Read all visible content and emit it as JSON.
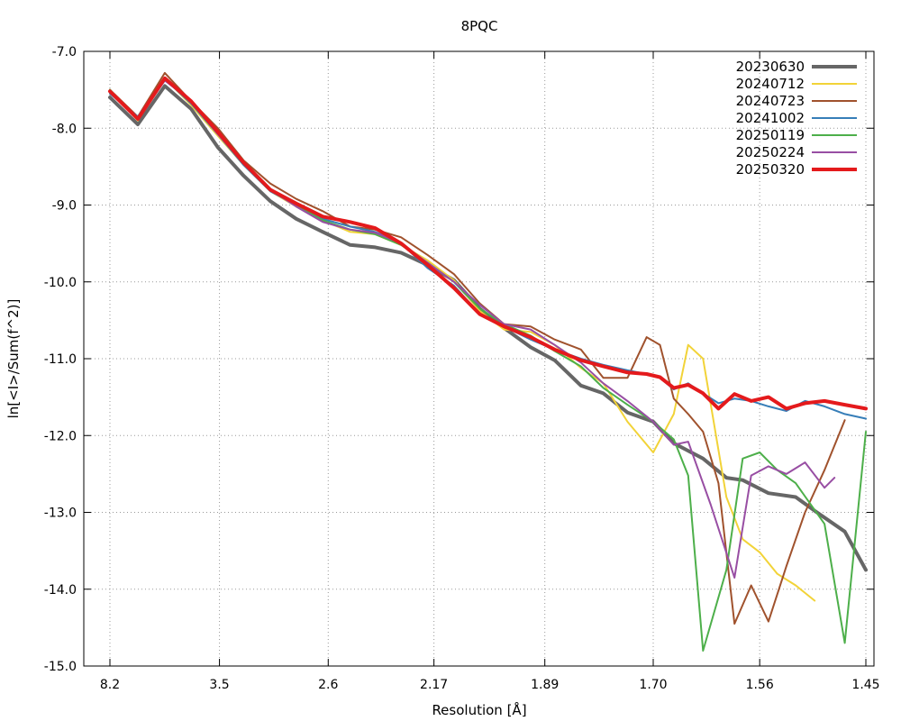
{
  "chart_data": {
    "type": "line",
    "title": "8PQC",
    "xlabel": "Resolution [Å]",
    "ylabel": "ln[<I>/Sum(f^2)]",
    "xticks": [
      "8.2",
      "3.5",
      "2.6",
      "2.17",
      "1.89",
      "1.70",
      "1.56",
      "1.45"
    ],
    "yticks": [
      "-7.0",
      "-8.0",
      "-9.0",
      "-10.0",
      "-11.0",
      "-12.0",
      "-13.0",
      "-14.0",
      "-15.0"
    ],
    "x_axis_units": "resolution in Å, ticks evenly spaced in 1/d^2",
    "xlim": [
      8.2,
      1.45
    ],
    "ylim": [
      -15.0,
      -7.0
    ],
    "grid": true,
    "legend_position": "top-right",
    "series": [
      {
        "name": "20230630",
        "color": "#666666",
        "width": 4,
        "x": [
          8.2,
          5.6,
          4.55,
          3.94,
          3.52,
          3.22,
          2.98,
          2.79,
          2.63,
          2.49,
          2.38,
          2.28,
          2.19,
          2.11,
          2.04,
          1.98,
          1.92,
          1.87,
          1.82,
          1.78,
          1.74,
          1.7,
          1.67,
          1.63,
          1.6,
          1.58,
          1.55,
          1.52,
          1.5,
          1.47,
          1.45
        ],
        "y": [
          -7.6,
          -7.95,
          -7.45,
          -7.75,
          -8.25,
          -8.62,
          -8.95,
          -9.18,
          -9.35,
          -9.52,
          -9.55,
          -9.62,
          -9.78,
          -9.98,
          -10.35,
          -10.6,
          -10.85,
          -11.02,
          -11.35,
          -11.45,
          -11.7,
          -11.82,
          -12.1,
          -12.3,
          -12.55,
          -12.58,
          -12.75,
          -12.8,
          -12.98,
          -13.25,
          -13.75
        ]
      },
      {
        "name": "20240712",
        "color": "#f2d338",
        "width": 2,
        "x": [
          8.2,
          5.6,
          4.55,
          3.94,
          3.52,
          3.22,
          2.98,
          2.79,
          2.63,
          2.49,
          2.38,
          2.28,
          2.19,
          2.11,
          2.04,
          1.98,
          1.92,
          1.87,
          1.82,
          1.78,
          1.74,
          1.7,
          1.67,
          1.65,
          1.63,
          1.6,
          1.58,
          1.56,
          1.54,
          1.52,
          1.5
        ],
        "y": [
          -7.5,
          -7.9,
          -7.35,
          -7.7,
          -8.1,
          -8.48,
          -8.82,
          -9.02,
          -9.2,
          -9.35,
          -9.38,
          -9.52,
          -9.72,
          -9.98,
          -10.38,
          -10.62,
          -10.65,
          -10.82,
          -11.12,
          -11.32,
          -11.82,
          -12.22,
          -11.72,
          -10.82,
          -11.0,
          -12.8,
          -13.35,
          -13.52,
          -13.8,
          -13.95,
          -14.15
        ]
      },
      {
        "name": "20240723",
        "color": "#a0522d",
        "width": 2,
        "x": [
          8.2,
          5.6,
          4.55,
          3.94,
          3.52,
          3.22,
          2.98,
          2.79,
          2.63,
          2.49,
          2.38,
          2.28,
          2.19,
          2.11,
          2.04,
          1.98,
          1.92,
          1.87,
          1.82,
          1.78,
          1.74,
          1.71,
          1.69,
          1.67,
          1.65,
          1.63,
          1.61,
          1.59,
          1.57,
          1.55,
          1.53,
          1.51,
          1.49,
          1.47
        ],
        "y": [
          -7.5,
          -7.85,
          -7.28,
          -7.65,
          -8.0,
          -8.42,
          -8.72,
          -8.92,
          -9.08,
          -9.28,
          -9.32,
          -9.42,
          -9.65,
          -9.9,
          -10.28,
          -10.55,
          -10.58,
          -10.75,
          -10.88,
          -11.25,
          -11.25,
          -10.72,
          -10.82,
          -11.52,
          -11.72,
          -11.95,
          -12.62,
          -14.45,
          -13.95,
          -14.42,
          -13.7,
          -13.0,
          -12.45,
          -11.8
        ]
      },
      {
        "name": "20241002",
        "color": "#377eb8",
        "width": 2,
        "x": [
          8.2,
          5.6,
          4.55,
          3.94,
          3.52,
          3.22,
          2.98,
          2.79,
          2.63,
          2.49,
          2.38,
          2.28,
          2.19,
          2.11,
          2.04,
          1.98,
          1.92,
          1.87,
          1.82,
          1.78,
          1.74,
          1.71,
          1.69,
          1.67,
          1.65,
          1.63,
          1.61,
          1.59,
          1.57,
          1.55,
          1.53,
          1.51,
          1.49,
          1.47,
          1.45
        ],
        "y": [
          -7.55,
          -7.85,
          -7.36,
          -7.68,
          -8.08,
          -8.48,
          -8.82,
          -9.0,
          -9.18,
          -9.28,
          -9.35,
          -9.5,
          -9.82,
          -10.05,
          -10.42,
          -10.58,
          -10.75,
          -10.88,
          -11.0,
          -11.08,
          -11.15,
          -11.2,
          -11.25,
          -11.4,
          -11.32,
          -11.45,
          -11.58,
          -11.52,
          -11.55,
          -11.62,
          -11.68,
          -11.55,
          -11.62,
          -11.72,
          -11.78
        ]
      },
      {
        "name": "20250119",
        "color": "#4daf4a",
        "width": 2,
        "x": [
          8.2,
          5.6,
          4.55,
          3.94,
          3.52,
          3.22,
          2.98,
          2.79,
          2.63,
          2.49,
          2.38,
          2.28,
          2.19,
          2.11,
          2.04,
          1.98,
          1.92,
          1.87,
          1.82,
          1.78,
          1.74,
          1.7,
          1.67,
          1.65,
          1.63,
          1.6,
          1.58,
          1.56,
          1.54,
          1.52,
          1.49,
          1.47,
          1.45
        ],
        "y": [
          -7.5,
          -7.88,
          -7.35,
          -7.65,
          -8.05,
          -8.45,
          -8.8,
          -9.0,
          -9.2,
          -9.32,
          -9.38,
          -9.52,
          -9.75,
          -10.0,
          -10.35,
          -10.55,
          -10.7,
          -10.9,
          -11.1,
          -11.38,
          -11.6,
          -11.82,
          -12.05,
          -12.52,
          -14.8,
          -13.75,
          -12.3,
          -12.22,
          -12.45,
          -12.62,
          -13.15,
          -14.7,
          -11.95
        ]
      },
      {
        "name": "20250224",
        "color": "#984ea3",
        "width": 2,
        "x": [
          8.2,
          5.6,
          4.55,
          3.94,
          3.52,
          3.22,
          2.98,
          2.79,
          2.63,
          2.49,
          2.38,
          2.28,
          2.19,
          2.11,
          2.04,
          1.98,
          1.92,
          1.87,
          1.82,
          1.78,
          1.74,
          1.7,
          1.67,
          1.65,
          1.62,
          1.59,
          1.57,
          1.55,
          1.53,
          1.51,
          1.49,
          1.48
        ],
        "y": [
          -7.52,
          -7.88,
          -7.38,
          -7.65,
          -8.08,
          -8.45,
          -8.8,
          -9.02,
          -9.22,
          -9.32,
          -9.36,
          -9.5,
          -9.75,
          -10.0,
          -10.3,
          -10.55,
          -10.62,
          -10.82,
          -11.05,
          -11.32,
          -11.55,
          -11.82,
          -12.12,
          -12.08,
          -12.9,
          -13.85,
          -12.52,
          -12.4,
          -12.5,
          -12.35,
          -12.68,
          -12.55
        ]
      },
      {
        "name": "20250320",
        "color": "#e41a1c",
        "width": 4,
        "x": [
          8.2,
          5.6,
          4.55,
          3.94,
          3.52,
          3.22,
          2.98,
          2.79,
          2.63,
          2.49,
          2.38,
          2.28,
          2.19,
          2.11,
          2.04,
          1.98,
          1.92,
          1.87,
          1.82,
          1.78,
          1.74,
          1.71,
          1.69,
          1.67,
          1.65,
          1.63,
          1.61,
          1.59,
          1.57,
          1.55,
          1.53,
          1.51,
          1.49,
          1.47,
          1.45
        ],
        "y": [
          -7.52,
          -7.88,
          -7.35,
          -7.65,
          -8.05,
          -8.45,
          -8.8,
          -8.98,
          -9.15,
          -9.22,
          -9.3,
          -9.5,
          -9.78,
          -10.08,
          -10.42,
          -10.58,
          -10.72,
          -10.88,
          -11.02,
          -11.1,
          -11.18,
          -11.2,
          -11.24,
          -11.38,
          -11.34,
          -11.45,
          -11.65,
          -11.46,
          -11.55,
          -11.5,
          -11.65,
          -11.58,
          -11.55,
          -11.6,
          -11.65
        ]
      }
    ]
  }
}
